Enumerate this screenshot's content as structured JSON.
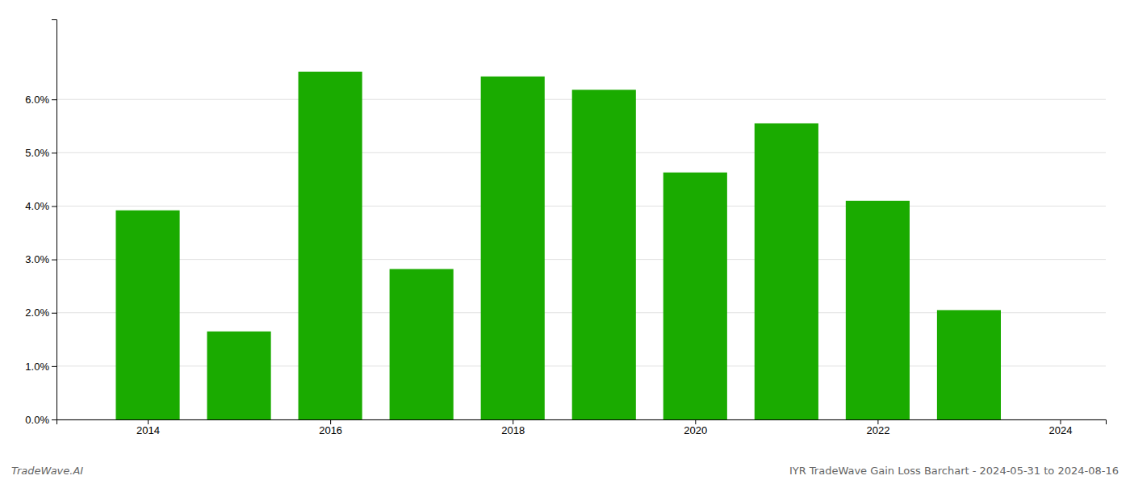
{
  "chart_data": {
    "type": "bar",
    "title": "IYR TradeWave Gain Loss Barchart - 2024-05-31 to 2024-08-16",
    "annotations": [
      "TradeWave.AI"
    ],
    "x": [
      2014,
      2015,
      2016,
      2017,
      2018,
      2019,
      2020,
      2021,
      2022,
      2023
    ],
    "values": [
      0.0392,
      0.0165,
      0.0652,
      0.0282,
      0.0643,
      0.0618,
      0.0463,
      0.0555,
      0.041,
      0.0205
    ],
    "color": "#1aab00",
    "xlim": [
      2013.0,
      2024.5
    ],
    "xticks": [
      2014,
      2016,
      2018,
      2020,
      2022,
      2024
    ],
    "ylim": [
      0,
      0.075
    ],
    "yticks": [
      {
        "value": 0.0,
        "label": "0.0%"
      },
      {
        "value": 0.01,
        "label": "1.0%"
      },
      {
        "value": 0.02,
        "label": "2.0%"
      },
      {
        "value": 0.03,
        "label": "3.0%"
      },
      {
        "value": 0.04,
        "label": "4.0%"
      },
      {
        "value": 0.05,
        "label": "5.0%"
      },
      {
        "value": 0.06,
        "label": "6.0%"
      }
    ],
    "grid": true
  }
}
